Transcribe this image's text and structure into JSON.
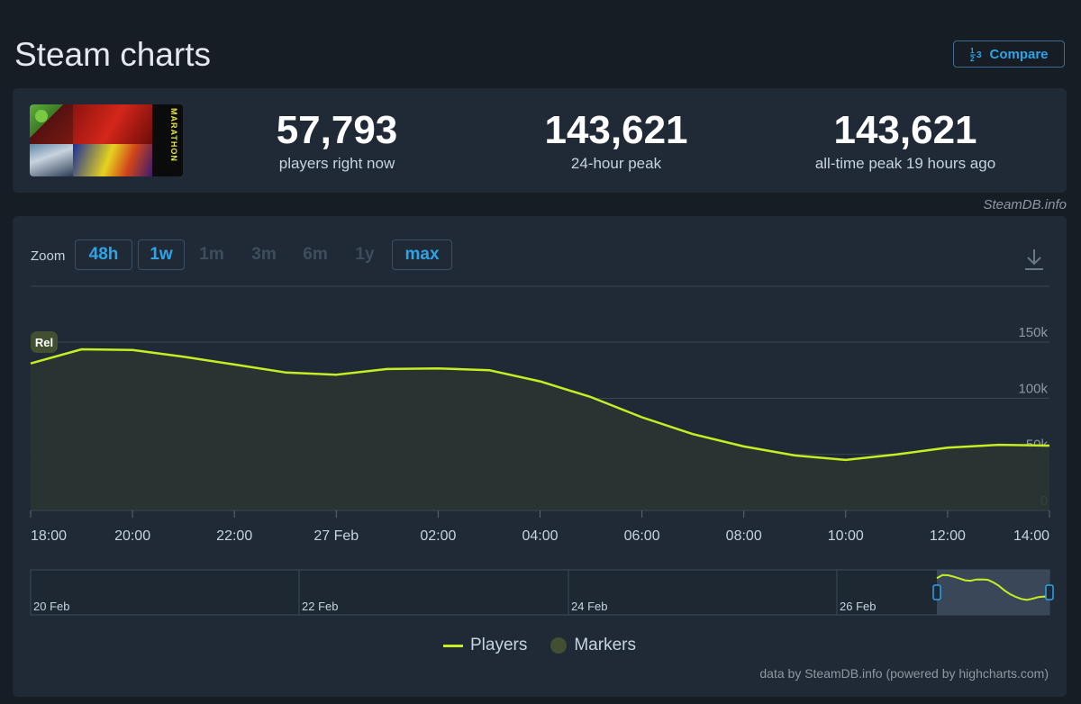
{
  "page": {
    "title": "Steam charts",
    "compare_label": "Compare",
    "compare_icon": "1 2 3 compare-icon"
  },
  "stats": [
    {
      "value": "57,793",
      "label": "players right now"
    },
    {
      "value": "143,621",
      "label": "24-hour peak"
    },
    {
      "value": "143,621",
      "label": "all-time peak 19 hours ago"
    }
  ],
  "game": {
    "capsule_text": "MARATHON"
  },
  "credit_top": "SteamDB.info",
  "zoom": {
    "label": "Zoom",
    "buttons": [
      {
        "label": "48h",
        "active": true
      },
      {
        "label": "1w",
        "active": true
      },
      {
        "label": "1m",
        "active": false
      },
      {
        "label": "3m",
        "active": false
      },
      {
        "label": "6m",
        "active": false
      },
      {
        "label": "1y",
        "active": false
      },
      {
        "label": "max",
        "active": true
      }
    ]
  },
  "chart_data": {
    "type": "area",
    "title": "",
    "xlabel": "",
    "ylabel": "",
    "ylim": [
      0,
      150000
    ],
    "y_ticks": [
      "0",
      "50k",
      "100k",
      "150k"
    ],
    "x_ticks": [
      "18:00",
      "20:00",
      "22:00",
      "27 Feb",
      "02:00",
      "04:00",
      "06:00",
      "08:00",
      "10:00",
      "12:00",
      "14:00"
    ],
    "x_tick_hours": [
      0,
      2,
      4,
      6,
      8,
      10,
      12,
      14,
      16,
      18,
      20
    ],
    "grid": true,
    "legend_position": "bottom",
    "marker": {
      "label": "Rel",
      "x_hour": 0
    },
    "series": [
      {
        "name": "Players",
        "color": "#c5ef22",
        "x_hours": [
          0,
          1,
          2,
          3,
          4,
          5,
          6,
          7,
          8,
          9,
          10,
          11,
          12,
          13,
          14,
          15,
          16,
          17,
          18,
          19,
          20
        ],
        "values": [
          131000,
          143621,
          143000,
          137000,
          130000,
          123000,
          121000,
          126000,
          126500,
          125000,
          115000,
          101000,
          83000,
          68000,
          57000,
          49000,
          45000,
          50000,
          56000,
          58500,
          57793
        ]
      }
    ],
    "navigator": {
      "labels": [
        "20 Feb",
        "22 Feb",
        "24 Feb",
        "26 Feb"
      ],
      "x_hours": [
        0,
        1,
        2,
        3,
        4,
        5,
        6,
        7,
        8,
        9,
        10,
        11,
        12,
        13,
        14,
        15,
        16,
        17,
        18,
        19,
        20
      ],
      "values": [
        131000,
        143621,
        143000,
        137000,
        130000,
        123000,
        121000,
        126000,
        126500,
        125000,
        115000,
        101000,
        83000,
        68000,
        57000,
        49000,
        45000,
        50000,
        56000,
        58500,
        57793
      ]
    }
  },
  "legend": {
    "players": "Players",
    "markers": "Markers"
  },
  "credit_bottom": "data by SteamDB.info (powered by highcharts.com)"
}
